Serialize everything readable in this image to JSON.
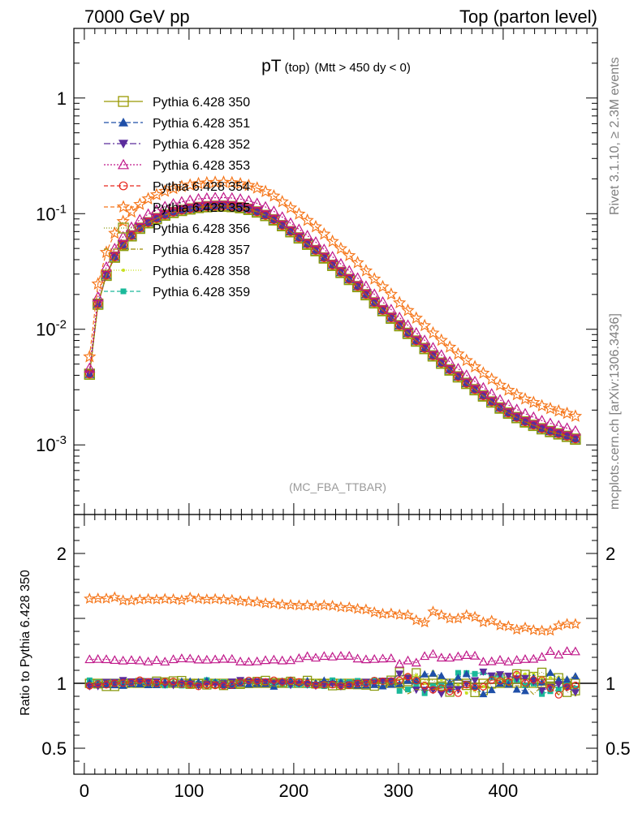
{
  "header": {
    "left": "7000 GeV pp",
    "right": "Top (parton level)"
  },
  "side_labels": {
    "rivet": "Rivet 3.1.10, ≥ 2.3M events",
    "source": "mcplots.cern.ch [arXiv:1306.3436]"
  },
  "chart_data": [
    {
      "type": "line",
      "title_main": "pT",
      "title_sub1": "(top)",
      "title_sub2": "(Mtt > 450 dy < 0)",
      "watermark": "(MC_FBA_TTBAR)",
      "xlabel": "",
      "ylabel": "",
      "log_y": true,
      "xlim": [
        -10,
        490
      ],
      "ylim": [
        0.00025,
        4.0
      ],
      "y_ticks": [
        "10^-3",
        "10^-2",
        "10^-1",
        "1"
      ],
      "legend_position": "top-left",
      "series": [
        {
          "name": "Pythia 6.428 350",
          "color": "#999900",
          "marker": "square-open",
          "dash": "solid",
          "scale": 1.0
        },
        {
          "name": "Pythia 6.428 351",
          "color": "#1f4fa8",
          "marker": "triangle-up",
          "dash": "6,3",
          "scale": 1.0
        },
        {
          "name": "Pythia 6.428 352",
          "color": "#5b2c9c",
          "marker": "triangle-down",
          "dash": "8,3,2,3",
          "scale": 1.01
        },
        {
          "name": "Pythia 6.428 353",
          "color": "#c0198a",
          "marker": "triangle-open",
          "dash": "2,2",
          "scale": 1.18
        },
        {
          "name": "Pythia 6.428 354",
          "color": "#e8271e",
          "marker": "circle-open",
          "dash": "5,3",
          "scale": 1.0
        },
        {
          "name": "Pythia 6.428 355",
          "color": "#f5761a",
          "marker": "star-open",
          "dash": "5,3",
          "scale": 1.6
        },
        {
          "name": "Pythia 6.428 356",
          "color": "#8a9a10",
          "marker": "square-open",
          "dash": "1,2",
          "scale": 0.99
        },
        {
          "name": "Pythia 6.428 357",
          "color": "#9e8c00",
          "marker": "none",
          "dash": "6,2,1,2",
          "scale": 1.0
        },
        {
          "name": "Pythia 6.428 358",
          "color": "#c8e01e",
          "marker": "small-dot",
          "dash": "1,2",
          "scale": 0.97
        },
        {
          "name": "Pythia 6.428 359",
          "color": "#1ab99a",
          "marker": "square-filled",
          "dash": "5,3",
          "scale": 1.0
        }
      ],
      "reference_curve": {
        "x": [
          5,
          10,
          15,
          20,
          25,
          30,
          40,
          50,
          60,
          70,
          80,
          90,
          100,
          110,
          120,
          130,
          140,
          150,
          160,
          170,
          180,
          190,
          200,
          220,
          240,
          260,
          280,
          300,
          320,
          340,
          360,
          380,
          400,
          420,
          440,
          460,
          475
        ],
        "y": [
          0.0041,
          0.012,
          0.0205,
          0.028,
          0.036,
          0.044,
          0.058,
          0.072,
          0.083,
          0.092,
          0.1,
          0.106,
          0.11,
          0.114,
          0.116,
          0.117,
          0.116,
          0.113,
          0.108,
          0.1,
          0.09,
          0.078,
          0.067,
          0.049,
          0.034,
          0.024,
          0.016,
          0.011,
          0.0075,
          0.0052,
          0.0037,
          0.0027,
          0.002,
          0.0016,
          0.00135,
          0.0012,
          0.00108
        ]
      }
    },
    {
      "type": "line",
      "ylabel": "Ratio to Pythia 6.428 350",
      "xlabel": "",
      "xlim": [
        -10,
        490
      ],
      "ylim": [
        0.3,
        2.3
      ],
      "y_ticks": [
        "0.5",
        "1",
        "2"
      ],
      "x_ticks": [
        "0",
        "100",
        "200",
        "300",
        "400"
      ],
      "ratio_levels": [
        {
          "name": "Pythia 6.428 355",
          "values": [
            1.65,
            1.65,
            1.63,
            1.58,
            1.52,
            1.45,
            1.42
          ]
        },
        {
          "name": "Pythia 6.428 353",
          "values": [
            1.18,
            1.18,
            1.18,
            1.2,
            1.19,
            1.2,
            1.22
          ]
        },
        {
          "name": "Pythia 6.428 350",
          "values": [
            1.0,
            1.0,
            1.0,
            1.0,
            1.0,
            1.0,
            1.0
          ]
        }
      ],
      "ratio_x": [
        5,
        80,
        160,
        240,
        320,
        400,
        475
      ]
    }
  ]
}
